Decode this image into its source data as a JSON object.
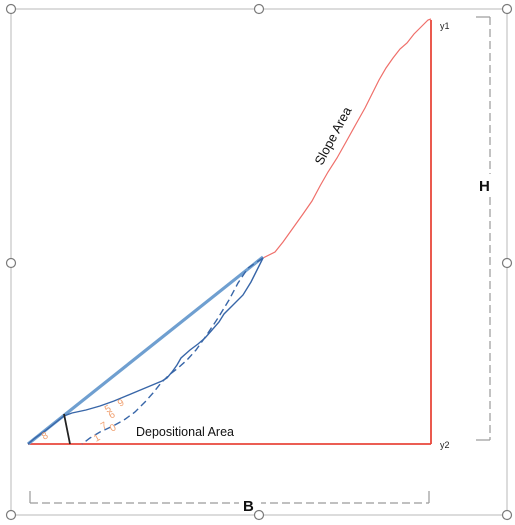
{
  "labels": {
    "y1": "y1",
    "y2": "y2",
    "height": "H",
    "base": "B",
    "slope_area": "Slope Area",
    "depositional_area": "Depositional Area",
    "zone_numbers": [
      "8",
      "1",
      "7",
      "0",
      "6",
      "5",
      "9"
    ]
  },
  "colors": {
    "outline_red": "#e8473b",
    "slope_red": "#ef6f6a",
    "blue_thick": "#6f9fd0",
    "blue_dark": "#3866a8",
    "zone_text": "#f0a070",
    "dimension": "#9a9a9a",
    "frame": "#b8b8b8"
  },
  "icons": {
    "resize_handles": "circle-handle"
  }
}
